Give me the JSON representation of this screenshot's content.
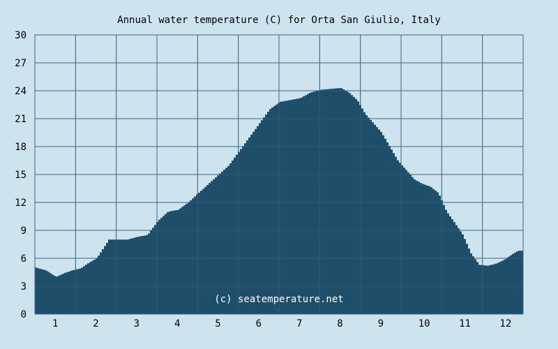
{
  "chart_data": {
    "type": "area",
    "title": "Annual water temperature (C) for Orta San Giulio, Italy",
    "watermark": "(c) seatemperature.net",
    "xlabel": "",
    "ylabel": "",
    "ylim": [
      0,
      30
    ],
    "yticks": [
      0,
      3,
      6,
      9,
      12,
      15,
      18,
      21,
      24,
      27,
      30
    ],
    "xlim": [
      0.5,
      12.5
    ],
    "xticks": [
      "1",
      "2",
      "3",
      "4",
      "5",
      "6",
      "7",
      "8",
      "9",
      "10",
      "11",
      "12"
    ],
    "grid": true,
    "colors": {
      "background": "#cde3ee",
      "fill": "#1f4e6a",
      "grid": "#3f6680"
    },
    "series": [
      {
        "x": [
          0.5,
          0.75,
          1.0,
          1.2,
          1.4,
          1.6,
          1.8,
          2.0,
          2.15,
          2.3,
          2.5,
          2.75,
          3.0,
          3.25,
          3.5,
          3.75,
          4.0,
          4.25,
          4.5,
          4.75,
          5.0,
          5.25,
          5.5,
          5.75,
          6.0,
          6.25,
          6.5,
          6.75,
          7.0,
          7.25,
          7.5,
          7.75,
          8.0,
          8.2,
          8.4,
          8.6,
          8.8,
          9.0,
          9.2,
          9.4,
          9.6,
          9.8,
          10.0,
          10.2,
          10.4,
          10.6,
          10.8,
          11.0,
          11.2,
          11.4,
          11.6,
          11.8,
          12.0,
          12.2,
          12.35,
          12.5
        ],
        "y": [
          5.0,
          4.7,
          4.0,
          4.4,
          4.7,
          4.9,
          5.5,
          6.0,
          7.0,
          8.0,
          8.0,
          8.0,
          8.3,
          8.5,
          10.0,
          11.0,
          11.2,
          12.0,
          13.0,
          14.0,
          15.0,
          16.0,
          17.5,
          19.0,
          20.5,
          22.0,
          22.8,
          23.0,
          23.2,
          23.8,
          24.1,
          24.2,
          24.3,
          23.8,
          23.0,
          21.5,
          20.5,
          19.5,
          18.0,
          16.5,
          15.5,
          14.5,
          14.0,
          13.7,
          13.0,
          11.0,
          9.8,
          8.5,
          6.5,
          5.3,
          5.2,
          5.4,
          5.8,
          6.4,
          6.8,
          6.8
        ]
      }
    ]
  }
}
